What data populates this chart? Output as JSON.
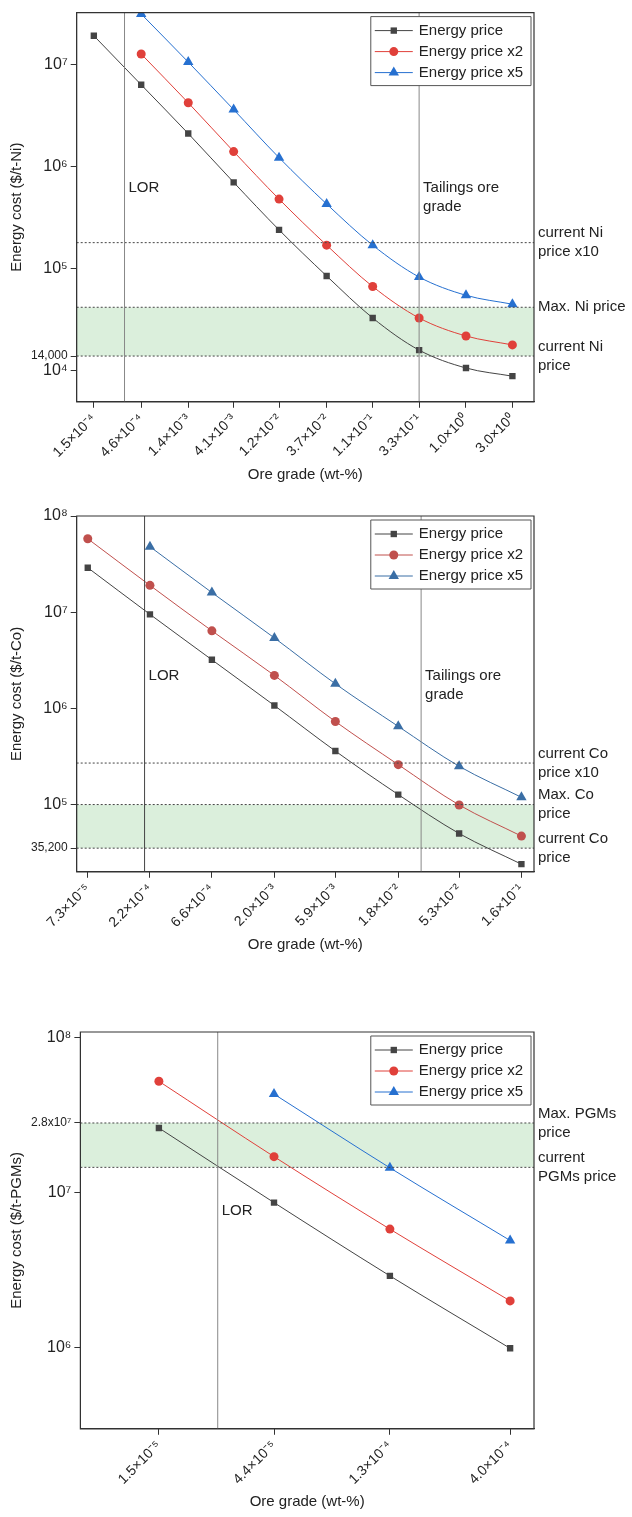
{
  "chart_data": [
    {
      "type": "line",
      "xlabel": "Ore grade (wt-%)",
      "ylabel": "Energy cost ($/t-Ni)",
      "log": "xy",
      "legend": "top right",
      "x": [
        0.00015,
        0.00046,
        0.0014,
        0.0041,
        0.012,
        0.037,
        0.11,
        0.33,
        1.0,
        3.0
      ],
      "xlim": [
        0.0001,
        5
      ],
      "ylim": [
        5000,
        32000000
      ],
      "xticks": [
        {
          "value": 0.00015,
          "label": "1.5×10⁻⁴"
        },
        {
          "value": 0.00046,
          "label": "4.6×10⁻⁴"
        },
        {
          "value": 0.0014,
          "label": "1.4×10⁻³"
        },
        {
          "value": 0.0041,
          "label": "4.1×10⁻³"
        },
        {
          "value": 0.012,
          "label": "1.2×10⁻²"
        },
        {
          "value": 0.037,
          "label": "3.7×10⁻²"
        },
        {
          "value": 0.11,
          "label": "1.1×10⁻¹"
        },
        {
          "value": 0.33,
          "label": "3.3×10⁻¹"
        },
        {
          "value": 1.0,
          "label": "1.0×10⁰"
        },
        {
          "value": 3.0,
          "label": "3.0×10⁰"
        }
      ],
      "yticks": [
        {
          "value": 10000,
          "label": "10⁴"
        },
        {
          "value": 14000,
          "label": "14,000"
        },
        {
          "value": 100000,
          "label": "10⁵"
        },
        {
          "value": 1000000,
          "label": "10⁶"
        },
        {
          "value": 10000000,
          "label": "10⁷"
        }
      ],
      "series": [
        {
          "name": "Energy price",
          "color": "#444444",
          "marker": "square",
          "values": [
            19000000,
            6300000,
            2100000,
            700000,
            240000,
            85000,
            33000,
            16000,
            10700,
            8900
          ]
        },
        {
          "name": "Energy price x2",
          "color": "#e0403a",
          "marker": "circle",
          "values": [
            null,
            12600000,
            4200000,
            1400000,
            480000,
            170000,
            67000,
            33000,
            22000,
            18000
          ]
        },
        {
          "name": "Energy price x5",
          "color": "#2670d0",
          "marker": "triangle",
          "values": [
            null,
            31000000,
            10500000,
            3600000,
            1220000,
            430000,
            170000,
            83000,
            55000,
            45000
          ]
        }
      ],
      "ref_lines": [
        {
          "axis": "y",
          "value": 180000,
          "label": "current Ni price x10",
          "line_style": "dotted",
          "color": "#444444"
        },
        {
          "axis": "y",
          "value": 42000,
          "label": "Max. Ni price",
          "line_style": "dotted",
          "color": "#444444"
        },
        {
          "axis": "y",
          "value": 14000,
          "label": "current Ni price",
          "line_style": "dotted",
          "color": "#444444"
        },
        {
          "axis": "x",
          "value": 0.00031,
          "label": "LOR",
          "line_style": "solid",
          "color": "#888888"
        },
        {
          "axis": "x",
          "value": 0.33,
          "label": "Tailings ore grade",
          "line_style": "solid",
          "color": "#888888"
        }
      ],
      "bands": [
        {
          "axis": "y",
          "from": 14000,
          "to": 42000,
          "color": "#4caf50"
        }
      ]
    },
    {
      "type": "line",
      "xlabel": "Ore grade (wt-%)",
      "ylabel": "Energy cost ($/t-Co)",
      "log": "xy",
      "legend": "top right",
      "x": [
        7.3e-05,
        0.00022,
        0.00066,
        0.002,
        0.0059,
        0.018,
        0.053,
        0.16
      ],
      "xlim": [
        6e-05,
        0.2
      ],
      "ylim": [
        20000,
        100000000
      ],
      "xticks": [
        {
          "value": 7.3e-05,
          "label": "7.3×10⁻⁵"
        },
        {
          "value": 0.00022,
          "label": "2.2×10⁻⁴"
        },
        {
          "value": 0.00066,
          "label": "6.6×10⁻⁴"
        },
        {
          "value": 0.002,
          "label": "2.0×10⁻³"
        },
        {
          "value": 0.0059,
          "label": "5.9×10⁻³"
        },
        {
          "value": 0.018,
          "label": "1.8×10⁻²"
        },
        {
          "value": 0.053,
          "label": "5.3×10⁻²"
        },
        {
          "value": 0.16,
          "label": "1.6×10⁻¹"
        }
      ],
      "yticks": [
        {
          "value": 35200,
          "label": "35,200"
        },
        {
          "value": 100000,
          "label": "10⁵"
        },
        {
          "value": 1000000,
          "label": "10⁶"
        },
        {
          "value": 10000000,
          "label": "10⁷"
        },
        {
          "value": 100000000,
          "label": "10⁸"
        }
      ],
      "series": [
        {
          "name": "Energy price",
          "color": "#444444",
          "marker": "square",
          "values": [
            29000000,
            9500000,
            3200000,
            1070000,
            360000,
            127000,
            50000,
            24000
          ]
        },
        {
          "name": "Energy price x2",
          "color": "#c0504d",
          "marker": "circle",
          "values": [
            58000000,
            19000000,
            6400000,
            2200000,
            730000,
            260000,
            99000,
            47000
          ]
        },
        {
          "name": "Energy price x5",
          "color": "#3a6ea5",
          "marker": "triangle",
          "values": [
            null,
            48000000,
            16000000,
            5400000,
            1800000,
            650000,
            250000,
            119000
          ]
        }
      ],
      "ref_lines": [
        {
          "axis": "y",
          "value": 270000,
          "label": "current Co price x10",
          "line_style": "dotted",
          "color": "#444444"
        },
        {
          "axis": "y",
          "value": 100000,
          "label": "Max. Co price",
          "line_style": "dotted",
          "color": "#444444"
        },
        {
          "axis": "y",
          "value": 35200,
          "label": "current Co price",
          "line_style": "dotted",
          "color": "#444444"
        },
        {
          "axis": "x",
          "value": 0.0002,
          "label": "LOR",
          "line_style": "solid",
          "color": "#444444"
        },
        {
          "axis": "x",
          "value": 0.027,
          "label": "Tailings ore grade",
          "line_style": "solid",
          "color": "#888888"
        }
      ],
      "bands": [
        {
          "axis": "y",
          "from": 35200,
          "to": 100000,
          "color": "#4caf50"
        }
      ]
    },
    {
      "type": "line",
      "xlabel": "Ore grade (wt-%)",
      "ylabel": "Energy cost ($/t-PGMs)",
      "log": "xy",
      "legend": "top right",
      "x": [
        1.5e-05,
        4.4e-05,
        0.00013,
        0.0004
      ],
      "xlim": [
        7.2e-06,
        0.0005
      ],
      "ylim": [
        300000,
        108000000
      ],
      "xticks": [
        {
          "value": 1.5e-05,
          "label": "1.5×10⁻⁵"
        },
        {
          "value": 4.4e-05,
          "label": "4.4×10⁻⁵"
        },
        {
          "value": 0.00013,
          "label": "1.3×10⁻⁴"
        },
        {
          "value": 0.0004,
          "label": "4.0×10⁻⁴"
        }
      ],
      "yticks": [
        {
          "value": 1000000,
          "label": "10⁶"
        },
        {
          "value": 10000000,
          "label": "10⁷"
        },
        {
          "value": 28000000,
          "label": "2.8x10⁷"
        },
        {
          "value": 100000000,
          "label": "10⁸"
        }
      ],
      "series": [
        {
          "name": "Energy price",
          "color": "#444444",
          "marker": "square",
          "values": [
            26000000,
            8600000,
            2900000,
            990000
          ]
        },
        {
          "name": "Energy price x2",
          "color": "#e0403a",
          "marker": "circle",
          "values": [
            52000000,
            17000000,
            5800000,
            2000000
          ]
        },
        {
          "name": "Energy price x5",
          "color": "#2670d0",
          "marker": "triangle",
          "values": [
            null,
            43000000,
            14400000,
            4900000
          ]
        }
      ],
      "ref_lines": [
        {
          "axis": "y",
          "value": 28000000,
          "label": "Max. PGMs price",
          "line_style": "dotted",
          "color": "#444444"
        },
        {
          "axis": "y",
          "value": 14500000,
          "label": "current PGMs price",
          "line_style": "dotted",
          "color": "#444444"
        },
        {
          "axis": "x",
          "value": 2.6e-05,
          "label": "LOR",
          "line_style": "solid",
          "color": "#888888"
        }
      ],
      "bands": [
        {
          "axis": "y",
          "from": 14500000,
          "to": 28000000,
          "color": "#4caf50"
        }
      ]
    }
  ]
}
